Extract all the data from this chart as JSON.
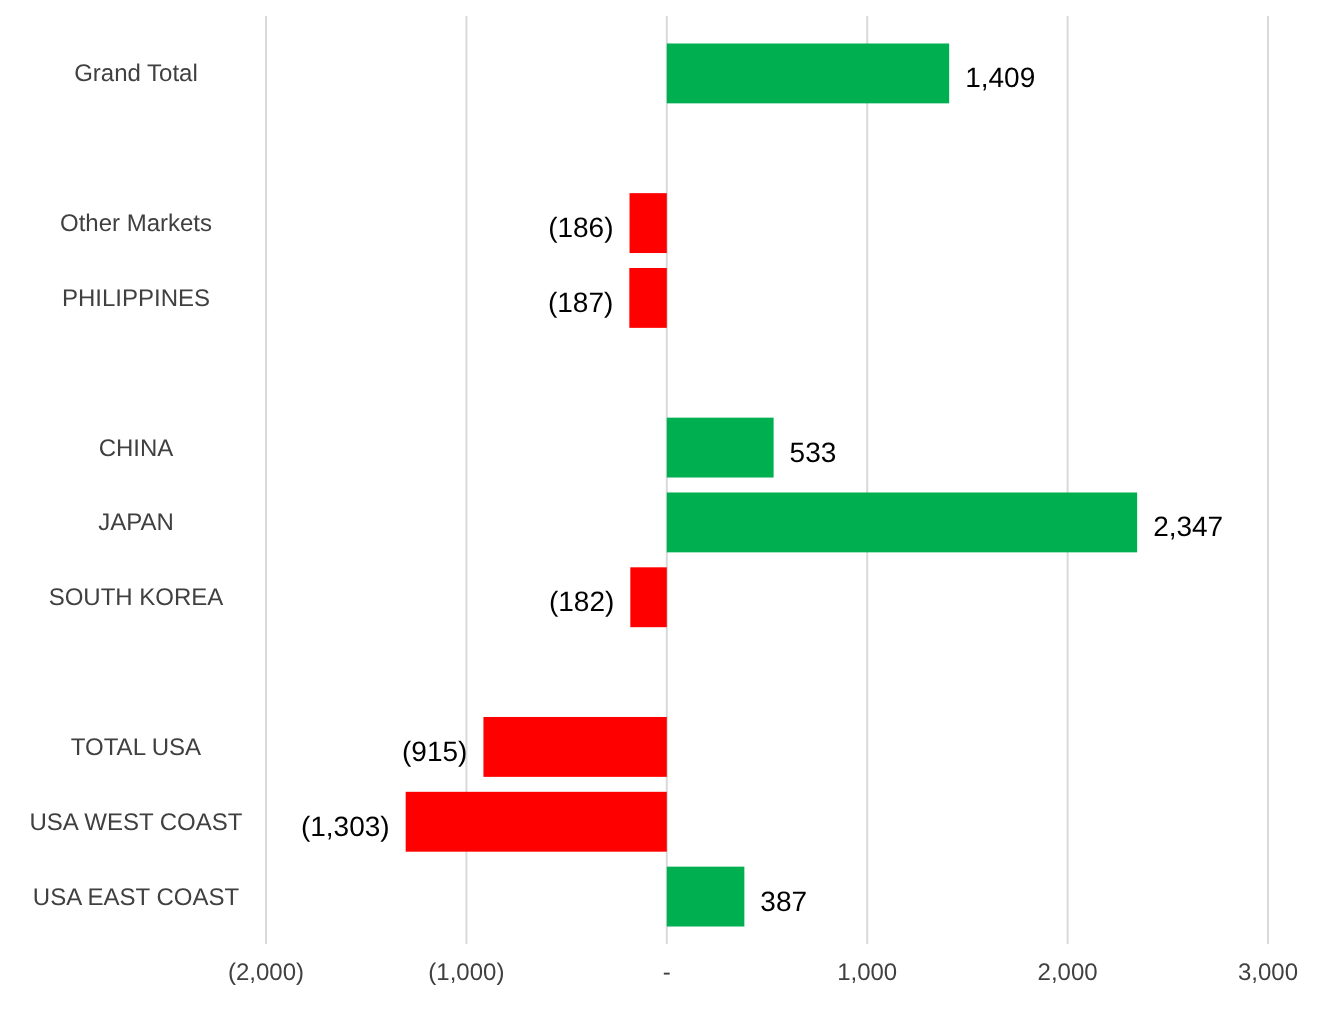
{
  "chart_data": {
    "type": "bar",
    "orientation": "horizontal",
    "categories": [
      "Grand Total",
      null,
      "Other Markets",
      "PHILIPPINES",
      null,
      "CHINA",
      "JAPAN",
      "SOUTH KOREA",
      null,
      "TOTAL USA",
      "USA WEST COAST",
      "USA EAST COAST"
    ],
    "values": [
      1409,
      null,
      -186,
      -187,
      null,
      533,
      2347,
      -182,
      null,
      -915,
      -1303,
      387
    ],
    "colors": [
      "#00b050",
      null,
      "#ff0000",
      "#ff0000",
      null,
      "#00b050",
      "#00b050",
      "#ff0000",
      null,
      "#ff0000",
      "#ff0000",
      "#00b050"
    ],
    "value_labels": [
      "1,409",
      null,
      "(186)",
      "(187)",
      null,
      "533",
      "2,347",
      "(182)",
      null,
      "(915)",
      "(1,303)",
      "387"
    ],
    "xlim": [
      -2000,
      3000
    ],
    "xticks": [
      {
        "value": -2000,
        "label": "(2,000)"
      },
      {
        "value": -1000,
        "label": "(1,000)"
      },
      {
        "value": 0,
        "label": "-"
      },
      {
        "value": 1000,
        "label": "1,000"
      },
      {
        "value": 2000,
        "label": "2,000"
      },
      {
        "value": 3000,
        "label": "3,000"
      }
    ],
    "grid": "x"
  }
}
